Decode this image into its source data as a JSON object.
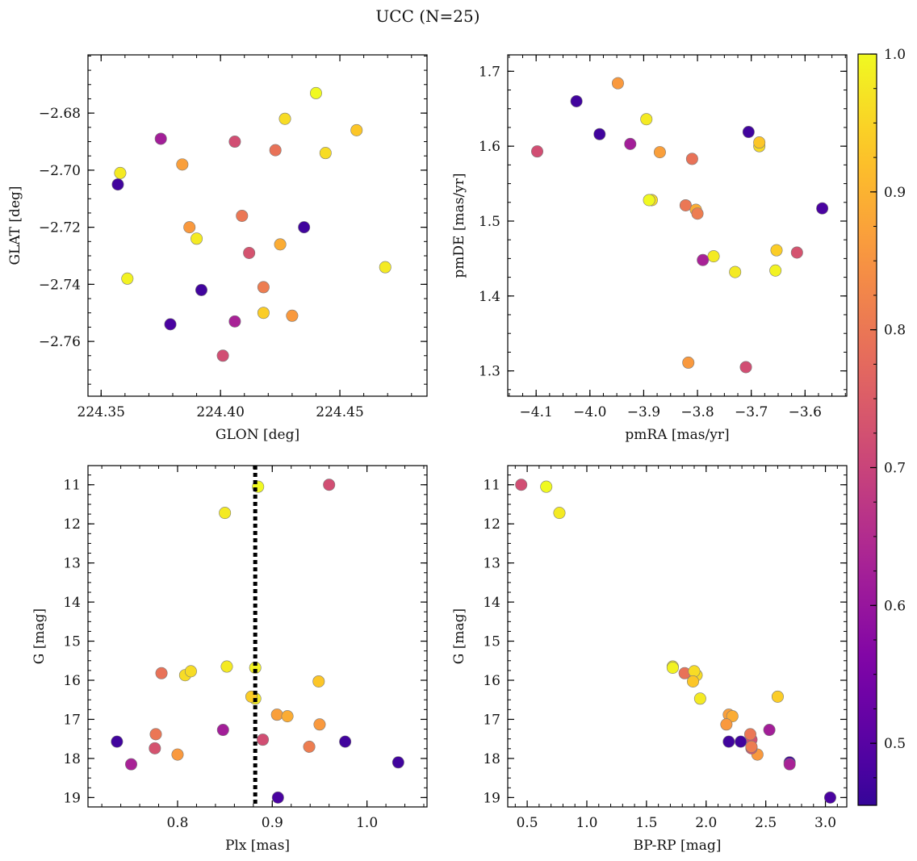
{
  "figure": {
    "title": "UCC (N=25)"
  },
  "colorbar": {
    "cmap": "plasma",
    "range": [
      0.455,
      1.0
    ],
    "ticks": [
      0.5,
      0.6,
      0.7,
      0.8,
      0.9,
      1.0
    ],
    "tick_labels": [
      "0.5",
      "0.6",
      "0.7",
      "0.8",
      "0.9",
      "1.0"
    ]
  },
  "stars": [
    {
      "glon": 224.358,
      "glat": -2.701,
      "pmra": -3.895,
      "pmde": 1.636,
      "plx": 0.85,
      "g": 11.72,
      "bprp": 0.77,
      "prob": 0.98
    },
    {
      "glon": 224.357,
      "glat": -2.705,
      "pmra": -4.025,
      "pmde": 1.66,
      "plx": 0.736,
      "g": 17.57,
      "bprp": 2.19,
      "prob": 0.47
    },
    {
      "glon": 224.375,
      "glat": -2.689,
      "pmra": -3.925,
      "pmde": 1.603,
      "plx": 0.848,
      "g": 17.27,
      "bprp": 2.53,
      "prob": 0.62
    },
    {
      "glon": 224.384,
      "glat": -2.698,
      "pmra": -3.87,
      "pmde": 1.592,
      "plx": 0.905,
      "g": 16.88,
      "bprp": 2.19,
      "prob": 0.87
    },
    {
      "glon": 224.406,
      "glat": -2.69,
      "pmra": -4.098,
      "pmde": 1.593,
      "plx": 0.89,
      "g": 17.52,
      "bprp": 2.38,
      "prob": 0.72
    },
    {
      "glon": 224.423,
      "glat": -2.693,
      "pmra": -3.81,
      "pmde": 1.583,
      "plx": 0.783,
      "g": 15.82,
      "bprp": 1.82,
      "prob": 0.79
    },
    {
      "glon": 224.427,
      "glat": -2.682,
      "pmra": -3.885,
      "pmde": 1.528,
      "plx": 0.808,
      "g": 15.87,
      "bprp": 1.92,
      "prob": 0.96
    },
    {
      "glon": 224.44,
      "glat": -2.673,
      "pmra": -3.89,
      "pmde": 1.528,
      "plx": 0.885,
      "g": 11.05,
      "bprp": 0.66,
      "prob": 1.0
    },
    {
      "glon": 224.444,
      "glat": -2.694,
      "pmra": -3.685,
      "pmde": 1.6,
      "plx": 0.814,
      "g": 15.77,
      "bprp": 1.9,
      "prob": 0.96
    },
    {
      "glon": 224.457,
      "glat": -2.686,
      "pmra": -3.685,
      "pmde": 1.605,
      "plx": 0.949,
      "g": 16.03,
      "bprp": 1.89,
      "prob": 0.93
    },
    {
      "glon": 224.387,
      "glat": -2.72,
      "pmra": -3.948,
      "pmde": 1.684,
      "plx": 0.8,
      "g": 17.9,
      "bprp": 2.43,
      "prob": 0.86
    },
    {
      "glon": 224.409,
      "glat": -2.716,
      "pmra": -3.822,
      "pmde": 1.521,
      "plx": 0.777,
      "g": 17.38,
      "bprp": 2.37,
      "prob": 0.8
    },
    {
      "glon": 224.435,
      "glat": -2.72,
      "pmra": -3.705,
      "pmde": 1.619,
      "plx": 0.977,
      "g": 17.57,
      "bprp": 2.29,
      "prob": 0.47
    },
    {
      "glon": 224.39,
      "glat": -2.724,
      "pmra": -3.77,
      "pmde": 1.453,
      "plx": 0.852,
      "g": 15.65,
      "bprp": 1.72,
      "prob": 0.98
    },
    {
      "glon": 224.425,
      "glat": -2.726,
      "pmra": -3.803,
      "pmde": 1.515,
      "plx": 0.916,
      "g": 16.92,
      "bprp": 2.22,
      "prob": 0.89
    },
    {
      "glon": 224.412,
      "glat": -2.729,
      "pmra": -3.615,
      "pmde": 1.458,
      "plx": 0.776,
      "g": 17.74,
      "bprp": 2.38,
      "prob": 0.73
    },
    {
      "glon": 224.469,
      "glat": -2.734,
      "pmra": -3.73,
      "pmde": 1.432,
      "plx": 0.882,
      "g": 16.47,
      "bprp": 1.95,
      "prob": 0.98
    },
    {
      "glon": 224.361,
      "glat": -2.738,
      "pmra": -3.655,
      "pmde": 1.434,
      "plx": 0.882,
      "g": 15.68,
      "bprp": 1.72,
      "prob": 0.99
    },
    {
      "glon": 224.392,
      "glat": -2.742,
      "pmra": -3.982,
      "pmde": 1.616,
      "plx": 1.033,
      "g": 18.1,
      "bprp": 2.7,
      "prob": 0.47
    },
    {
      "glon": 224.418,
      "glat": -2.741,
      "pmra": -3.8,
      "pmde": 1.51,
      "plx": 0.939,
      "g": 17.7,
      "bprp": 2.38,
      "prob": 0.81
    },
    {
      "glon": 224.418,
      "glat": -2.75,
      "pmra": -3.653,
      "pmde": 1.461,
      "plx": 0.878,
      "g": 16.42,
      "bprp": 2.6,
      "prob": 0.94
    },
    {
      "glon": 224.43,
      "glat": -2.751,
      "pmra": -3.817,
      "pmde": 1.311,
      "plx": 0.95,
      "g": 17.13,
      "bprp": 2.17,
      "prob": 0.86
    },
    {
      "glon": 224.379,
      "glat": -2.754,
      "pmra": -3.568,
      "pmde": 1.517,
      "plx": 0.906,
      "g": 19.0,
      "bprp": 3.04,
      "prob": 0.48
    },
    {
      "glon": 224.406,
      "glat": -2.753,
      "pmra": -3.79,
      "pmde": 1.448,
      "plx": 0.751,
      "g": 18.15,
      "bprp": 2.7,
      "prob": 0.63
    },
    {
      "glon": 224.401,
      "glat": -2.765,
      "pmra": -3.71,
      "pmde": 1.305,
      "plx": 0.96,
      "g": 11.0,
      "bprp": 0.45,
      "prob": 0.72
    }
  ],
  "chart_data": [
    {
      "type": "scatter",
      "xfield": "glon",
      "yfield": "glat",
      "xlabel": "GLON [deg]",
      "ylabel": "GLAT [deg]",
      "xlim": [
        224.3445,
        224.4865
      ],
      "ylim": [
        -2.7792,
        -2.6596
      ],
      "xticks": [
        224.35,
        224.4,
        224.45
      ],
      "xtick_labels": [
        "224.35",
        "224.40",
        "224.45"
      ],
      "yticks": [
        -2.68,
        -2.7,
        -2.72,
        -2.74,
        -2.76
      ],
      "ytick_labels": [
        "−2.68",
        "−2.70",
        "−2.72",
        "−2.74",
        "−2.76"
      ],
      "xminor": 0.01,
      "yminor": 0.005,
      "yinvert": false
    },
    {
      "type": "scatter",
      "xfield": "pmra",
      "yfield": "pmde",
      "xlabel": "pmRA [mas/yr]",
      "ylabel": "pmDE [mas/yr]",
      "xlim": [
        -4.1528,
        -3.5224
      ],
      "ylim": [
        1.2662,
        1.7219
      ],
      "xticks": [
        -4.1,
        -4.0,
        -3.9,
        -3.8,
        -3.7,
        -3.6
      ],
      "xtick_labels": [
        "−4.1",
        "−4.0",
        "−3.9",
        "−3.8",
        "−3.7",
        "−3.6"
      ],
      "yticks": [
        1.3,
        1.4,
        1.5,
        1.6,
        1.7
      ],
      "ytick_labels": [
        "1.3",
        "1.4",
        "1.5",
        "1.6",
        "1.7"
      ],
      "xminor": 0.025,
      "yminor": 0.025,
      "yinvert": false
    },
    {
      "type": "scatter",
      "xfield": "plx",
      "yfield": "g",
      "xlabel": "Plx [mas]",
      "ylabel": "G [mag]",
      "xlim": [
        0.7054,
        1.0634
      ],
      "ylim": [
        10.51,
        19.24
      ],
      "xticks": [
        0.8,
        0.9,
        1.0
      ],
      "xtick_labels": [
        "0.8",
        "0.9",
        "1.0"
      ],
      "yticks": [
        11,
        12,
        13,
        14,
        15,
        16,
        17,
        18,
        19
      ],
      "ytick_labels": [
        "11",
        "12",
        "13",
        "14",
        "15",
        "16",
        "17",
        "18",
        "19"
      ],
      "xminor": 0.02,
      "yminor": 0.25,
      "yinvert": true,
      "vline": 0.882
    },
    {
      "type": "scatter",
      "xfield": "bprp",
      "yfield": "g",
      "xlabel": "BP-RP [mag]",
      "ylabel": "G [mag]",
      "xlim": [
        0.337,
        3.179
      ],
      "ylim": [
        10.51,
        19.24
      ],
      "xticks": [
        0.5,
        1.0,
        1.5,
        2.0,
        2.5,
        3.0
      ],
      "xtick_labels": [
        "0.5",
        "1.0",
        "1.5",
        "2.0",
        "2.5",
        "3.0"
      ],
      "yticks": [
        11,
        12,
        13,
        14,
        15,
        16,
        17,
        18,
        19
      ],
      "ytick_labels": [
        "11",
        "12",
        "13",
        "14",
        "15",
        "16",
        "17",
        "18",
        "19"
      ],
      "xminor": 0.1,
      "yminor": 0.25,
      "yinvert": true
    }
  ]
}
